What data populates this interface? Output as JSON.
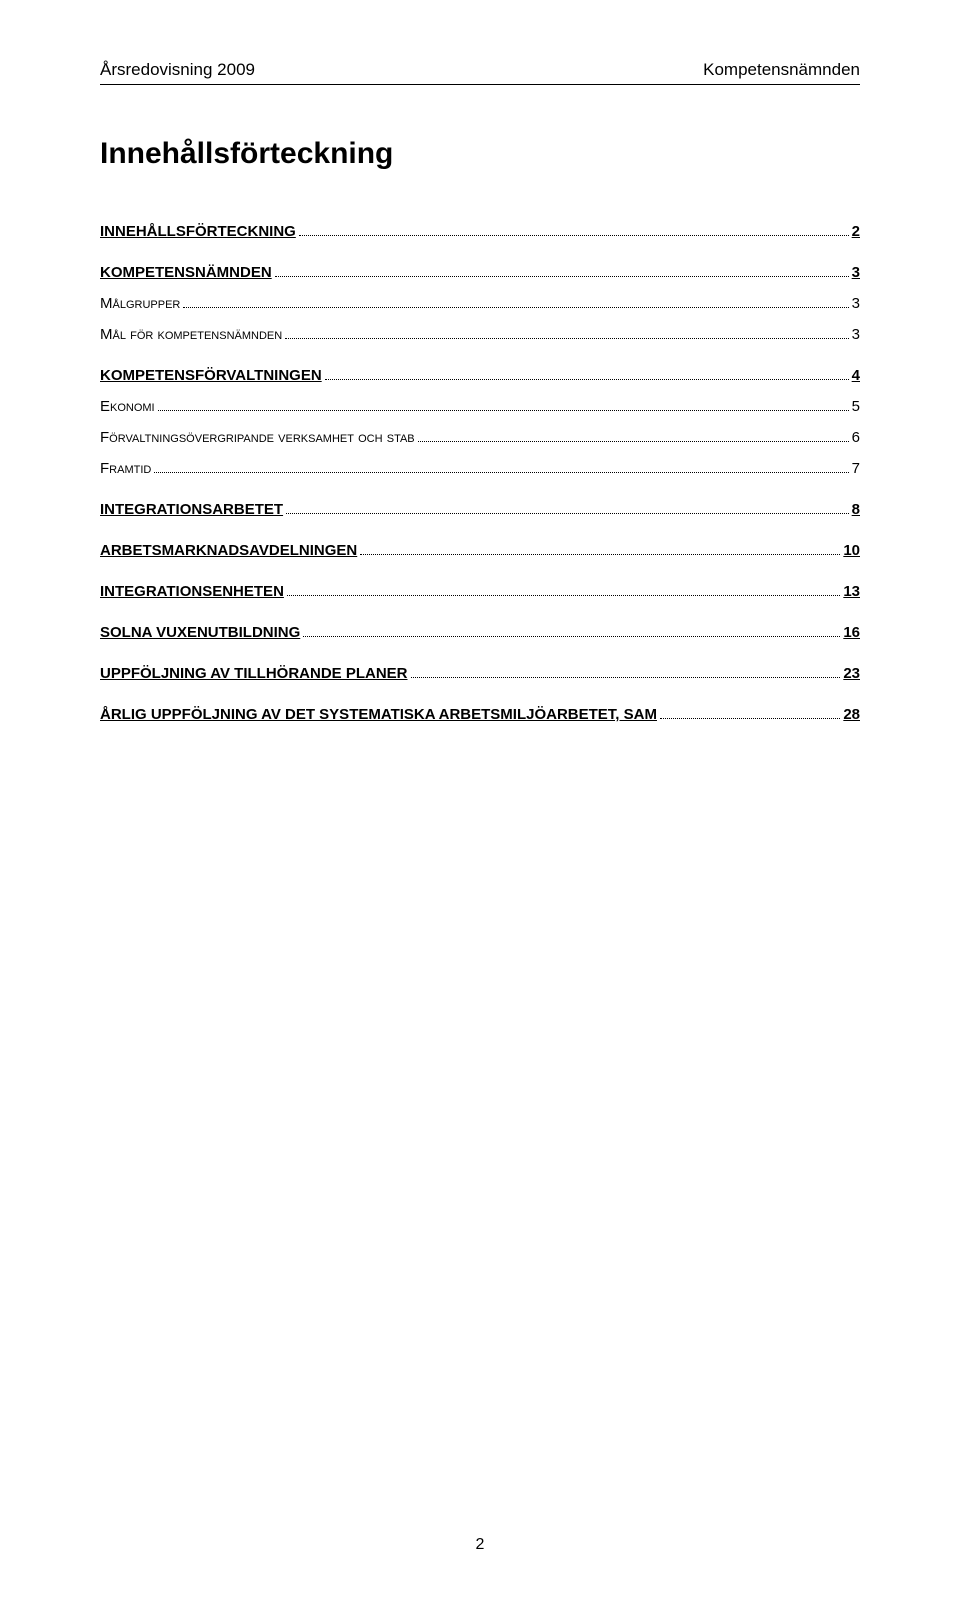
{
  "header": {
    "left": "Årsredovisning 2009",
    "right": "Kompetensnämnden"
  },
  "title": "Innehållsförteckning",
  "toc": [
    {
      "label": "INNEHÅLLSFÖRTECKNING",
      "page": "2",
      "bold": true,
      "sub": false
    },
    {
      "label": "KOMPETENSNÄMNDEN",
      "page": "3",
      "bold": true,
      "sub": false
    },
    {
      "label": "Målgrupper",
      "page": "3",
      "bold": false,
      "sub": true
    },
    {
      "label": "Mål för kompetensnämnden",
      "page": "3",
      "bold": false,
      "sub": true
    },
    {
      "label": "KOMPETENSFÖRVALTNINGEN",
      "page": "4",
      "bold": true,
      "sub": false
    },
    {
      "label": "Ekonomi",
      "page": "5",
      "bold": false,
      "sub": true
    },
    {
      "label": "Förvaltningsövergripande verksamhet och stab",
      "page": "6",
      "bold": false,
      "sub": true
    },
    {
      "label": "Framtid",
      "page": "7",
      "bold": false,
      "sub": true
    },
    {
      "label": "INTEGRATIONSARBETET",
      "page": "8",
      "bold": true,
      "sub": false
    },
    {
      "label": "ARBETSMARKNADSAVDELNINGEN",
      "page": "10",
      "bold": true,
      "sub": false
    },
    {
      "label": "INTEGRATIONSENHETEN",
      "page": "13",
      "bold": true,
      "sub": false
    },
    {
      "label": "SOLNA VUXENUTBILDNING",
      "page": "16",
      "bold": true,
      "sub": false
    },
    {
      "label": "UPPFÖLJNING AV TILLHÖRANDE PLANER",
      "page": "23",
      "bold": true,
      "sub": false
    },
    {
      "label": "ÅRLIG UPPFÖLJNING AV DET SYSTEMATISKA ARBETSMILJÖARBETET, SAM",
      "page": "28",
      "bold": true,
      "sub": false
    }
  ],
  "pageNumber": "2",
  "colors": {
    "background": "#ffffff",
    "text": "#000000"
  }
}
